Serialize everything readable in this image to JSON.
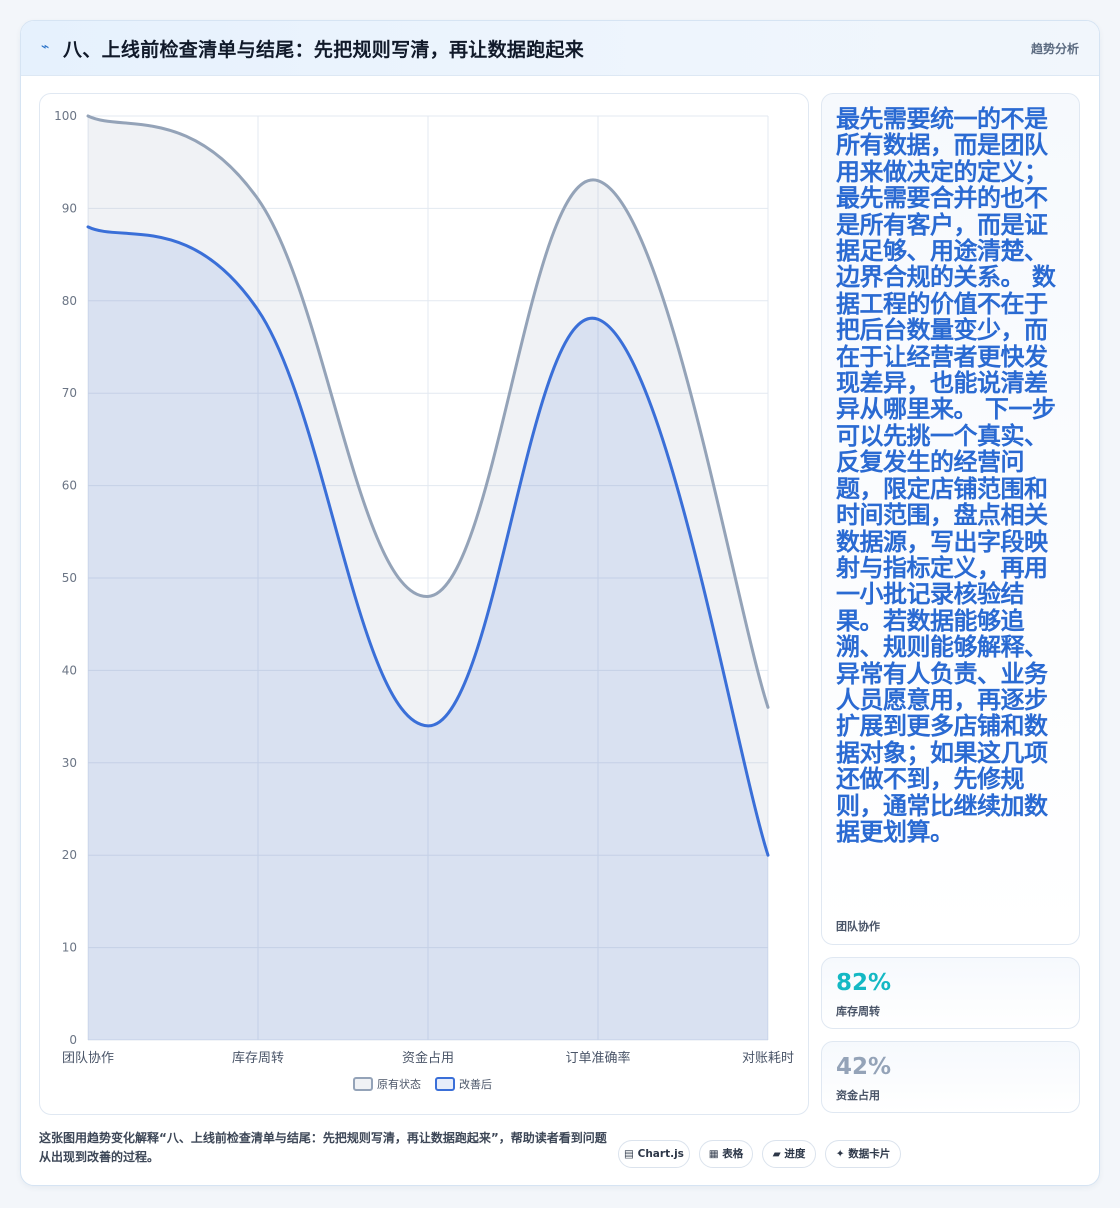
{
  "header": {
    "icon": "chart-line-icon",
    "title": "八、上线前检查清单与结尾：先把规则写清，再让数据跑起来",
    "tag": "趋势分析"
  },
  "chart_data": {
    "type": "area",
    "categories": [
      "团队协作",
      "库存周转",
      "资金占用",
      "订单准确率",
      "对账耗时"
    ],
    "series": [
      {
        "name": "原有状态",
        "values": [
          100,
          91,
          48,
          93,
          36
        ],
        "color": "#94a3b8"
      },
      {
        "name": "改善后",
        "values": [
          88,
          79,
          34,
          78,
          20
        ],
        "color": "#3a6fd8"
      }
    ],
    "ylim": [
      0,
      100
    ],
    "yticks": [
      0,
      10,
      20,
      30,
      40,
      50,
      60,
      70,
      80,
      90,
      100
    ],
    "grid": true,
    "legend_position": "bottom"
  },
  "side": {
    "main_text": "最先需要统一的不是所有数据，而是团队用来做决定的定义；最先需要合并的也不是所有客户，而是证据足够、用途清楚、边界合规的关系。 数据工程的价值不在于把后台数量变少，而在于让经营者更快发现差异，也能说清差异从哪里来。 下一步可以先挑一个真实、反复发生的经营问题，限定店铺范围和时间范围，盘点相关数据源，写出字段映射与指标定义，再用一小批记录核验结果。若数据能够追溯、规则能够解释、异常有人负责、业务人员愿意用，再逐步扩展到更多店铺和数据对象；如果这几项还做不到，先修规则，通常比继续加数据更划算。",
    "main_caption": "团队协作",
    "stats": [
      {
        "value": "82%",
        "label": "库存周转",
        "color": "#14b8c4"
      },
      {
        "value": "42%",
        "label": "资金占用",
        "color": "#94a3b8"
      }
    ]
  },
  "footer": {
    "text": "这张图用趋势变化解释“八、上线前检查清单与结尾：先把规则写清，再让数据跑起来”，帮助读者看到问题从出现到改善的过程。",
    "chips": [
      {
        "icon": "table-icon",
        "glyph": "▤",
        "label": "Chart.js"
      },
      {
        "icon": "grid-icon",
        "glyph": "▦",
        "label": "表格"
      },
      {
        "icon": "progress-icon",
        "glyph": "▰",
        "label": "进度"
      },
      {
        "icon": "sparkle-icon",
        "glyph": "✦",
        "label": "数据卡片"
      }
    ]
  }
}
